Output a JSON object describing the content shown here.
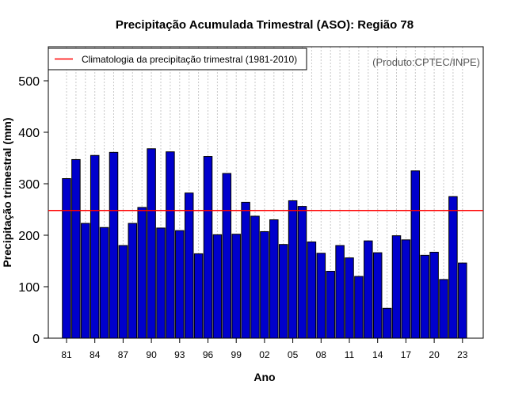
{
  "chart_data": {
    "type": "bar",
    "title": "Precipitação Acumulada Trimestral (ASO): Região 78",
    "xlabel": "Ano",
    "ylabel": "Precipitação trimestral (mm)",
    "source": "(Produto:CPTEC/INPE)",
    "ylim": [
      0,
      565
    ],
    "yticks": [
      0,
      100,
      200,
      300,
      400,
      500
    ],
    "years": [
      1981,
      1982,
      1983,
      1984,
      1985,
      1986,
      1987,
      1988,
      1989,
      1990,
      1991,
      1992,
      1993,
      1994,
      1995,
      1996,
      1997,
      1998,
      1999,
      2000,
      2001,
      2002,
      2003,
      2004,
      2005,
      2006,
      2007,
      2008,
      2009,
      2010,
      2011,
      2012,
      2013,
      2014,
      2015,
      2016,
      2017,
      2018,
      2019,
      2020,
      2021,
      2022,
      2023
    ],
    "xtick_labels": [
      "81",
      "84",
      "87",
      "90",
      "93",
      "96",
      "99",
      "02",
      "05",
      "08",
      "11",
      "14",
      "17",
      "20",
      "23"
    ],
    "values": [
      310,
      347,
      223,
      355,
      215,
      361,
      180,
      223,
      254,
      368,
      214,
      362,
      209,
      282,
      164,
      353,
      201,
      320,
      202,
      264,
      237,
      207,
      230,
      182,
      267,
      256,
      187,
      165,
      130,
      180,
      156,
      120,
      189,
      166,
      58,
      199,
      191,
      325,
      161,
      167,
      114,
      275,
      146
    ],
    "bar_color": "#0000cc",
    "climatology": {
      "label": "Climatologia da precipitação trimestral (1981-2010)",
      "value": 248,
      "color": "#ff0000"
    },
    "grid": true,
    "legend_position": "top-left"
  }
}
